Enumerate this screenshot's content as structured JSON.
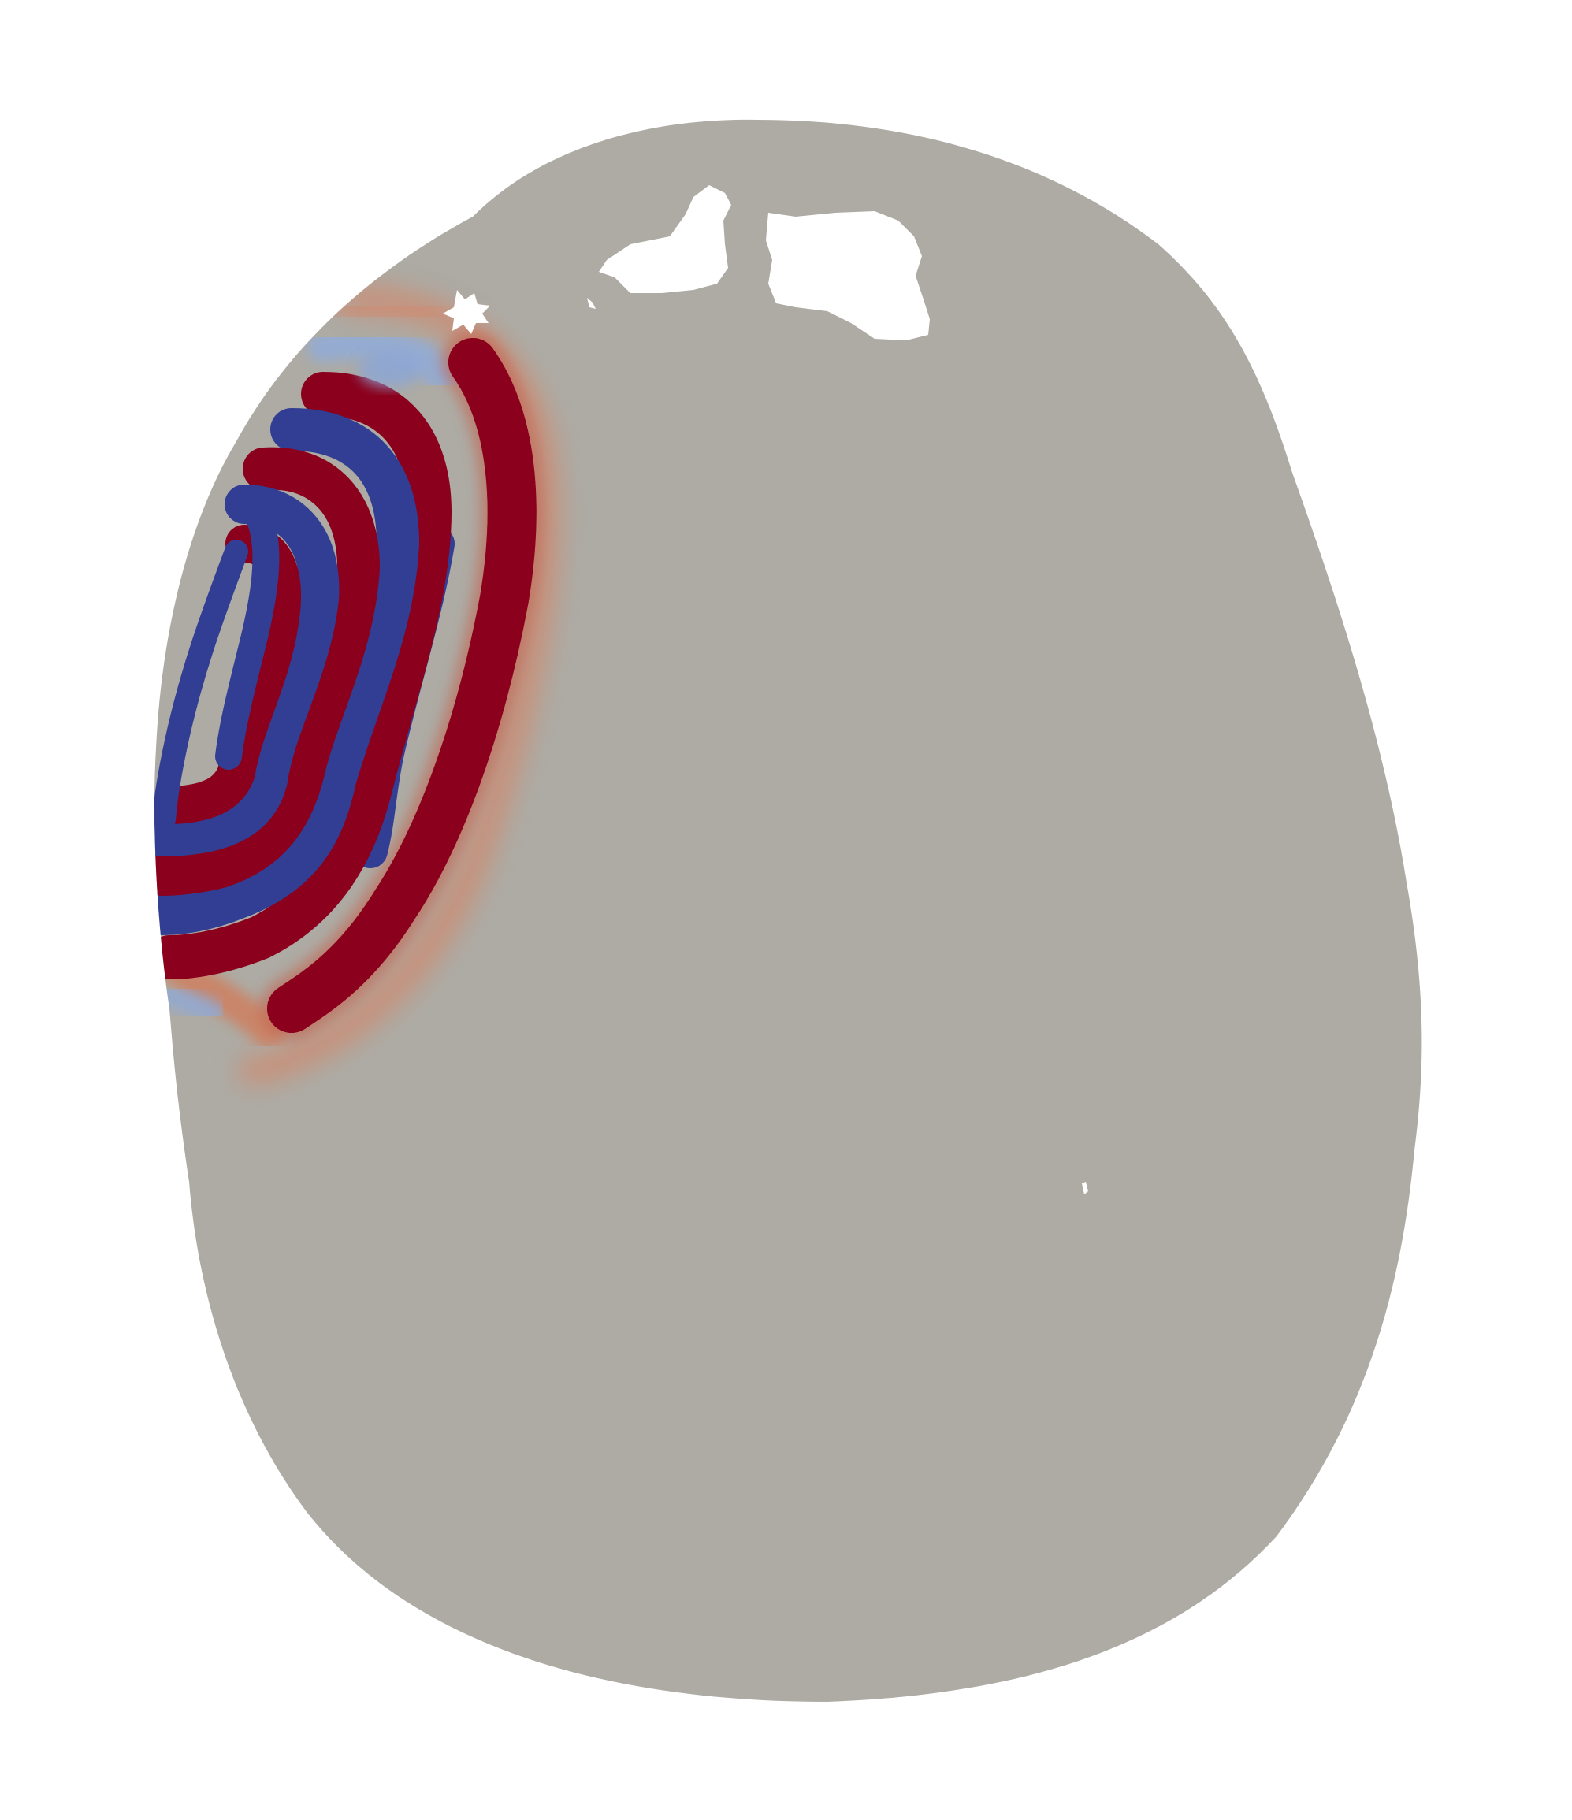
{
  "scene": {
    "background_color": "#ffffff",
    "domain_fill_color": "#adaba4",
    "colormap": {
      "name": "cool-to-warm",
      "high_color": "#8b001c",
      "low_color": "#323e93",
      "light_high_color": "#d9805f",
      "light_low_color": "#8aa6d8"
    },
    "features": [
      "wavefront-bands",
      "domain-holes"
    ]
  }
}
